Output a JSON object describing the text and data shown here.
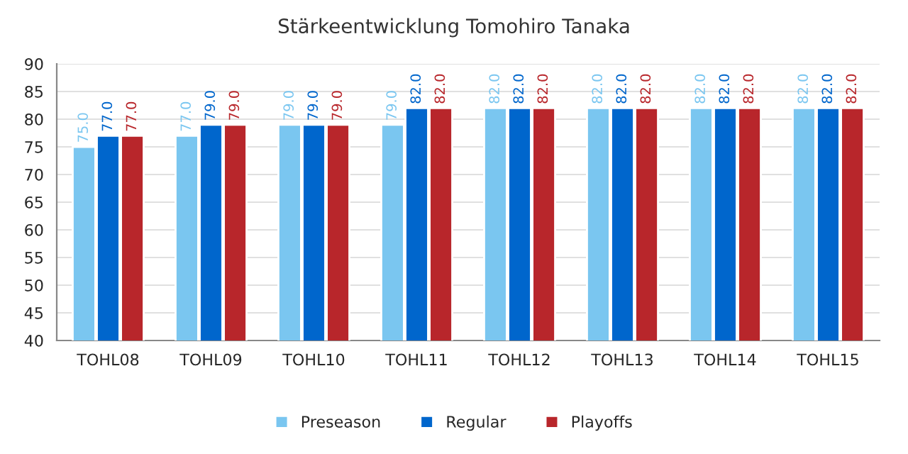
{
  "chart_data": {
    "type": "bar",
    "title": "Stärkeentwicklung Tomohiro Tanaka",
    "categories": [
      "TOHL08",
      "TOHL09",
      "TOHL10",
      "TOHL11",
      "TOHL12",
      "TOHL13",
      "TOHL14",
      "TOHL15"
    ],
    "series": [
      {
        "name": "Preseason",
        "color": "#7ac6f0",
        "values": [
          75,
          77,
          79,
          79,
          82,
          82,
          82,
          82
        ],
        "value_labels": [
          "75.0",
          "77.0",
          "79.0",
          "79.0",
          "82.0",
          "82.0",
          "82.0",
          "82.0"
        ]
      },
      {
        "name": "Regular",
        "color": "#0066cc",
        "values": [
          77,
          79,
          79,
          82,
          82,
          82,
          82,
          82
        ],
        "value_labels": [
          "77.0",
          "79.0",
          "79.0",
          "82.0",
          "82.0",
          "82.0",
          "82.0",
          "82.0"
        ]
      },
      {
        "name": "Playoffs",
        "color": "#b8262b",
        "values": [
          77,
          79,
          79,
          82,
          82,
          82,
          82,
          82
        ],
        "value_labels": [
          "77.0",
          "79.0",
          "79.0",
          "82.0",
          "82.0",
          "82.0",
          "82.0",
          "82.0"
        ]
      }
    ],
    "ylim": [
      40,
      90
    ],
    "yticks": [
      40,
      45,
      50,
      55,
      60,
      65,
      70,
      75,
      80,
      85,
      90
    ],
    "grid": "y",
    "legend": "bottom"
  }
}
